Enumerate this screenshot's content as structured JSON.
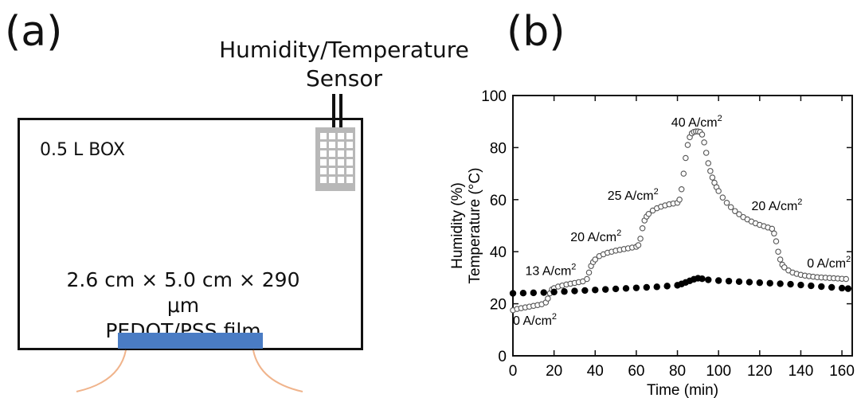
{
  "panel_a": {
    "label": "(a)",
    "sensor_title_line1": "Humidity/Temperature",
    "sensor_title_line2": "Sensor",
    "box_label": "0.5 L BOX",
    "film_dims": "2.6 cm × 5.0 cm × 290 μm",
    "film_name": "PEDOT/PSS film",
    "film_color": "#4a7cc4",
    "wire_color": "#f0b48c"
  },
  "panel_b": {
    "label": "(b)"
  },
  "chart_data": {
    "type": "scatter",
    "xlabel": "Time (min)",
    "ylabel_line1": "Humidity (%)",
    "ylabel_line2": "Temperature (°C)",
    "xlim": [
      0,
      165
    ],
    "ylim": [
      0,
      100
    ],
    "xticks": [
      0,
      20,
      40,
      60,
      80,
      100,
      120,
      140,
      160
    ],
    "yticks": [
      0,
      20,
      40,
      60,
      80,
      100
    ],
    "series": [
      {
        "marker": "open-circle",
        "color": "#555555",
        "points": [
          [
            0,
            17.5
          ],
          [
            2,
            18
          ],
          [
            4,
            18.3
          ],
          [
            6,
            18.6
          ],
          [
            8,
            18.9
          ],
          [
            10,
            19.2
          ],
          [
            12,
            19.5
          ],
          [
            14,
            19.8
          ],
          [
            16,
            20.5
          ],
          [
            17,
            22
          ],
          [
            18,
            24
          ],
          [
            19,
            25.5
          ],
          [
            20,
            26
          ],
          [
            22,
            26.6
          ],
          [
            24,
            27
          ],
          [
            26,
            27.4
          ],
          [
            28,
            27.7
          ],
          [
            30,
            28
          ],
          [
            32,
            28.3
          ],
          [
            34,
            28.6
          ],
          [
            36,
            29.5
          ],
          [
            37,
            32
          ],
          [
            38,
            34.5
          ],
          [
            39,
            36
          ],
          [
            40,
            37
          ],
          [
            42,
            38.3
          ],
          [
            44,
            39
          ],
          [
            46,
            39.6
          ],
          [
            48,
            40
          ],
          [
            50,
            40.4
          ],
          [
            52,
            40.7
          ],
          [
            54,
            41
          ],
          [
            56,
            41.3
          ],
          [
            58,
            41.6
          ],
          [
            60,
            41.9
          ],
          [
            61,
            42.5
          ],
          [
            62,
            45
          ],
          [
            63,
            49
          ],
          [
            64,
            52
          ],
          [
            65,
            53.5
          ],
          [
            66,
            54.5
          ],
          [
            68,
            55.8
          ],
          [
            70,
            56.7
          ],
          [
            72,
            57.3
          ],
          [
            74,
            57.8
          ],
          [
            76,
            58.2
          ],
          [
            78,
            58.5
          ],
          [
            80,
            58.8
          ],
          [
            81,
            60
          ],
          [
            82,
            64
          ],
          [
            83,
            70
          ],
          [
            84,
            76
          ],
          [
            85,
            81
          ],
          [
            86,
            84
          ],
          [
            87,
            85.5
          ],
          [
            88,
            86
          ],
          [
            89,
            86.2
          ],
          [
            90,
            86.2
          ],
          [
            91,
            86
          ],
          [
            92,
            85
          ],
          [
            93,
            82
          ],
          [
            94,
            78
          ],
          [
            95,
            74
          ],
          [
            96,
            71
          ],
          [
            97,
            68.5
          ],
          [
            98,
            66.5
          ],
          [
            99,
            64.8
          ],
          [
            100,
            63.3
          ],
          [
            102,
            60.8
          ],
          [
            104,
            58.8
          ],
          [
            106,
            57.1
          ],
          [
            108,
            55.6
          ],
          [
            110,
            54.4
          ],
          [
            112,
            53.3
          ],
          [
            114,
            52.4
          ],
          [
            116,
            51.6
          ],
          [
            118,
            50.9
          ],
          [
            120,
            50.3
          ],
          [
            122,
            49.8
          ],
          [
            124,
            49.3
          ],
          [
            126,
            48.8
          ],
          [
            127,
            47
          ],
          [
            128,
            44
          ],
          [
            129,
            40
          ],
          [
            130,
            37
          ],
          [
            131,
            35
          ],
          [
            132,
            34
          ],
          [
            134,
            32.8
          ],
          [
            136,
            32
          ],
          [
            138,
            31.5
          ],
          [
            140,
            31.1
          ],
          [
            142,
            30.8
          ],
          [
            144,
            30.6
          ],
          [
            146,
            30.4
          ],
          [
            148,
            30.2
          ],
          [
            150,
            30.1
          ],
          [
            152,
            30
          ],
          [
            154,
            29.9
          ],
          [
            156,
            29.8
          ],
          [
            158,
            29.7
          ],
          [
            160,
            29.6
          ],
          [
            162,
            29.5
          ]
        ]
      },
      {
        "marker": "filled-circle",
        "color": "#000000",
        "points": [
          [
            0,
            24
          ],
          [
            5,
            24.1
          ],
          [
            10,
            24.2
          ],
          [
            15,
            24.3
          ],
          [
            20,
            24.5
          ],
          [
            25,
            24.7
          ],
          [
            30,
            24.9
          ],
          [
            35,
            25.1
          ],
          [
            40,
            25.3
          ],
          [
            45,
            25.5
          ],
          [
            50,
            25.7
          ],
          [
            55,
            25.9
          ],
          [
            60,
            26.1
          ],
          [
            65,
            26.3
          ],
          [
            70,
            26.5
          ],
          [
            75,
            26.8
          ],
          [
            80,
            27.1
          ],
          [
            82,
            27.6
          ],
          [
            84,
            28.2
          ],
          [
            86,
            28.8
          ],
          [
            88,
            29.4
          ],
          [
            90,
            29.8
          ],
          [
            92,
            29.6
          ],
          [
            95,
            29.2
          ],
          [
            100,
            28.9
          ],
          [
            105,
            28.7
          ],
          [
            110,
            28.5
          ],
          [
            115,
            28.3
          ],
          [
            120,
            28.1
          ],
          [
            125,
            27.9
          ],
          [
            130,
            27.7
          ],
          [
            135,
            27.5
          ],
          [
            140,
            27.2
          ],
          [
            145,
            26.9
          ],
          [
            150,
            26.6
          ],
          [
            155,
            26.3
          ],
          [
            160,
            26
          ],
          [
            163,
            25.8
          ]
        ]
      }
    ],
    "annotations": [
      {
        "base": "0 A/cm",
        "sup": "2",
        "x": 0,
        "y": 12
      },
      {
        "base": "13 A/cm",
        "sup": "2",
        "x": 6,
        "y": 31
      },
      {
        "base": "20 A/cm",
        "sup": "2",
        "x": 28,
        "y": 44
      },
      {
        "base": "25 A/cm",
        "sup": "2",
        "x": 46,
        "y": 60
      },
      {
        "base": "40 A/cm",
        "sup": "2",
        "x": 77,
        "y": 88
      },
      {
        "base": "20 A/cm",
        "sup": "2",
        "x": 116,
        "y": 56
      },
      {
        "base": "0 A/cm",
        "sup": "2",
        "x": 143,
        "y": 34
      }
    ]
  }
}
